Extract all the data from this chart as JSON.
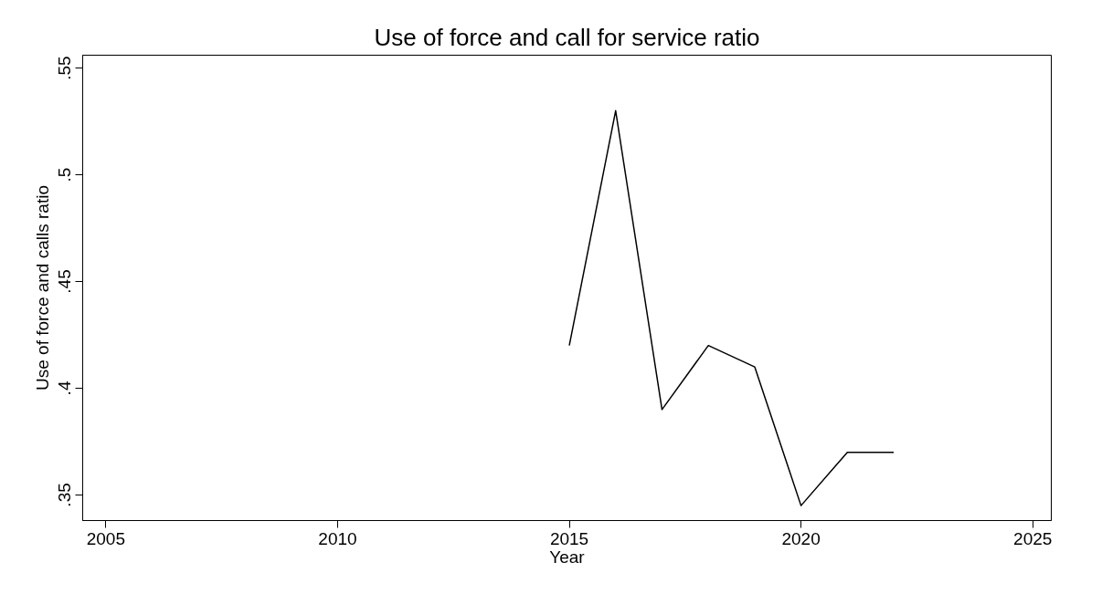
{
  "chart_data": {
    "type": "line",
    "title": "Use of force and call for service ratio",
    "xlabel": "Year",
    "ylabel": "Use of force and calls ratio",
    "x": [
      2015,
      2016,
      2017,
      2018,
      2019,
      2020,
      2021,
      2022
    ],
    "series": [
      {
        "color": "#000000",
        "values": [
          0.42,
          0.53,
          0.39,
          0.42,
          0.41,
          0.345,
          0.37,
          0.37
        ]
      }
    ],
    "xlim": [
      2004.5,
      2025.4
    ],
    "ylim": [
      0.338,
      0.556
    ],
    "xticks": [
      2005,
      2010,
      2015,
      2020,
      2025
    ],
    "yticks": [
      {
        "value": 0.35,
        "label": ".35"
      },
      {
        "value": 0.4,
        "label": ".4"
      },
      {
        "value": 0.45,
        "label": ".45"
      },
      {
        "value": 0.5,
        "label": ".5"
      },
      {
        "value": 0.55,
        "label": ".55"
      }
    ],
    "grid": false,
    "marker": "none",
    "line_style": "solid"
  }
}
